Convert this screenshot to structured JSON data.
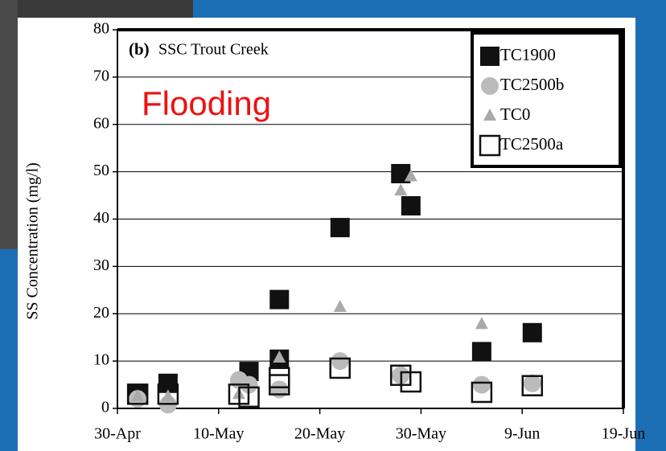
{
  "chart_data": {
    "type": "scatter",
    "panel": "(b)",
    "title": "SSC Trout Creek",
    "annotation": "Flooding",
    "y_label": "SS Concentration (mg/l)",
    "xlim": [
      "04-30",
      "06-19"
    ],
    "xticks": [
      {
        "value": "04-30",
        "label": "30-Apr"
      },
      {
        "value": "05-10",
        "label": "10-May"
      },
      {
        "value": "05-20",
        "label": "20-May"
      },
      {
        "value": "05-30",
        "label": "30-May"
      },
      {
        "value": "06-09",
        "label": "9-Jun"
      },
      {
        "value": "06-19",
        "label": "19-Jun"
      }
    ],
    "ylim": [
      0,
      80
    ],
    "yticks": [
      0,
      10,
      20,
      30,
      40,
      50,
      60,
      70,
      80
    ],
    "grid": true,
    "legend": "top-right",
    "series": [
      {
        "name": "TC1900",
        "color": "#111111",
        "marker": "square",
        "x": [
          "05-02",
          "05-05",
          "05-13",
          "05-16",
          "05-16",
          "05-22",
          "05-28",
          "05-29",
          "06-05",
          "06-10"
        ],
        "values": [
          2.9,
          5.3,
          7.8,
          23,
          10.4,
          38.2,
          49.6,
          42.8,
          12,
          16
        ]
      },
      {
        "name": "TC2500b",
        "color": "#bbbbbb",
        "marker": "circle",
        "x": [
          "05-02",
          "05-05",
          "05-12",
          "05-13",
          "05-16",
          "05-22",
          "05-28",
          "06-05",
          "06-10"
        ],
        "values": [
          2,
          0.8,
          6,
          5,
          4,
          10,
          7,
          5,
          5.3
        ]
      },
      {
        "name": "TC0",
        "color": "#aaaaaa",
        "marker": "triangle",
        "x": [
          "05-02",
          "05-05",
          "05-12",
          "05-16",
          "05-22",
          "05-28",
          "05-29",
          "06-05"
        ],
        "values": [
          2.5,
          2.5,
          3,
          10.7,
          21.4,
          46,
          49,
          17.8
        ]
      },
      {
        "name": "TC2500a",
        "color": "#111111",
        "marker": "open-square",
        "x": [
          "05-02",
          "05-05",
          "05-12",
          "05-13",
          "05-16",
          "05-16",
          "05-22",
          "05-28",
          "05-29",
          "06-05",
          "06-10"
        ],
        "values": [
          3,
          3,
          3,
          2.4,
          6.5,
          5,
          8.5,
          7,
          5.6,
          3.4,
          4.8
        ]
      }
    ]
  }
}
